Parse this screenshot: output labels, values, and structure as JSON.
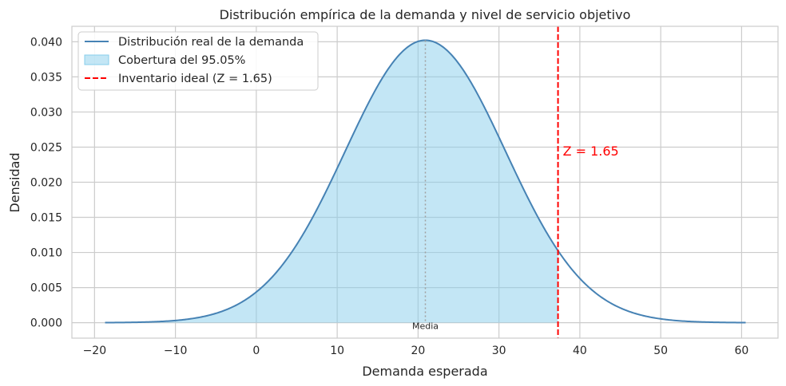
{
  "chart_data": {
    "type": "area",
    "title": "Distribución empírica de la demanda y nivel de servicio objetivo",
    "xlabel": "Demanda esperada",
    "ylabel": "Densidad",
    "xlim": [
      -22.8,
      64.5
    ],
    "ylim": [
      -0.0022,
      0.0422
    ],
    "xticks": [
      -20,
      -10,
      0,
      10,
      20,
      30,
      40,
      50,
      60
    ],
    "xtick_labels": [
      "−20",
      "−10",
      "0",
      "10",
      "20",
      "30",
      "40",
      "50",
      "60"
    ],
    "yticks": [
      0.0,
      0.005,
      0.01,
      0.015,
      0.02,
      0.025,
      0.03,
      0.035,
      0.04
    ],
    "ytick_labels": [
      "0.000",
      "0.005",
      "0.010",
      "0.015",
      "0.020",
      "0.025",
      "0.030",
      "0.035",
      "0.040"
    ],
    "grid": true,
    "legend_position": "top-left",
    "distribution": {
      "family": "normal",
      "mean": 20.9,
      "std": 9.92,
      "x_range": [
        -18.7,
        60.5
      ]
    },
    "coverage": {
      "label": "Cobertura del 95.05%",
      "fill_from": -18.7,
      "fill_to": 37.3
    },
    "mean_line": {
      "x": 20.9,
      "label": "Media"
    },
    "inventory_line": {
      "x": 37.3,
      "label": "Inventario ideal (Z = 1.65)",
      "annotation": "Z = 1.65"
    },
    "series": [
      {
        "name": "Distribución real de la demanda",
        "kind": "line",
        "color": "#4682b4"
      },
      {
        "name": "Cobertura del 95.05%",
        "kind": "fill",
        "color": "#87ceeb"
      },
      {
        "name": "Inventario ideal (Z = 1.65)",
        "kind": "dashed-vline",
        "color": "#ff0000"
      }
    ],
    "colors": {
      "curve": "#4682b4",
      "fill": "#87ceeb",
      "vline": "#ff0000",
      "mean_line": "#a0a0a0",
      "grid": "#cccccc",
      "spine": "#cccccc"
    }
  }
}
